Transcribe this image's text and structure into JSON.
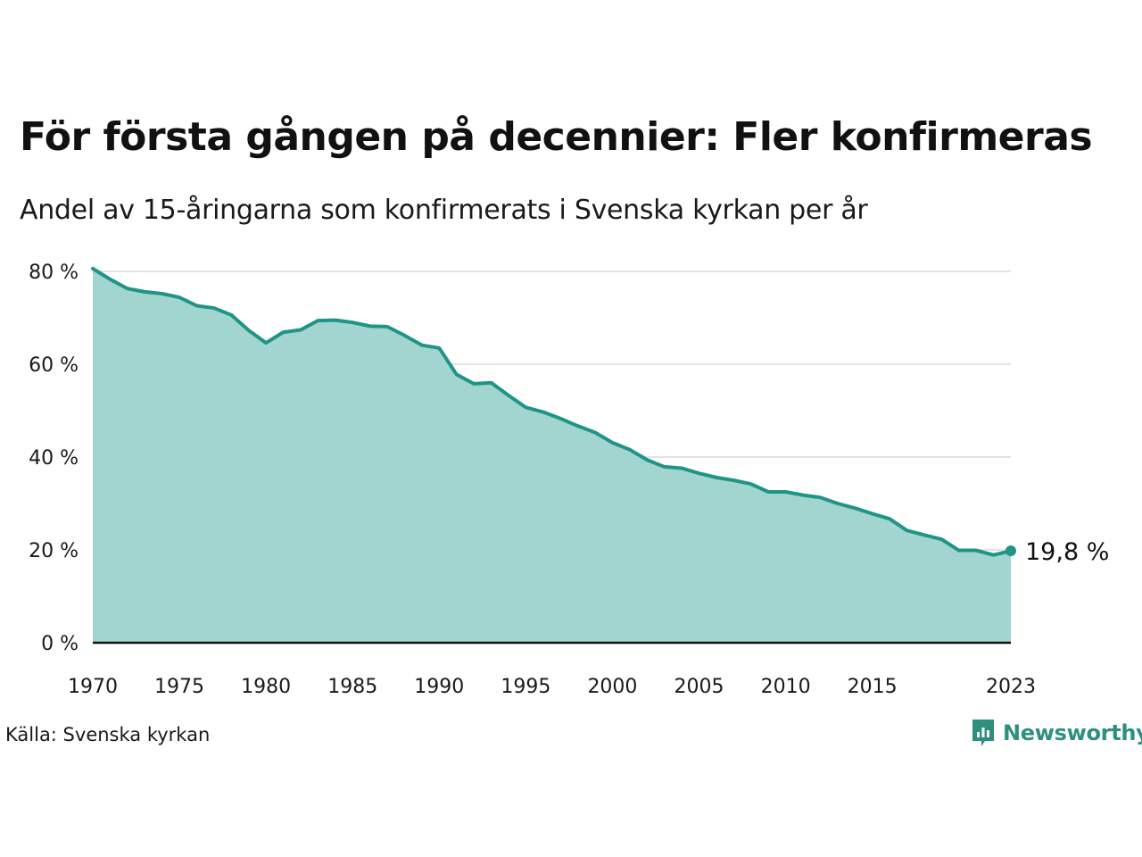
{
  "title": "För första gången på decennier: Fler konfirmeras",
  "subtitle": "Andel av 15-åringarna som konfirmerats i Svenska kyrkan per år",
  "source": "Källa: Svenska kyrkan",
  "brand": "Newsworthy",
  "colors": {
    "line": "#1f9587",
    "area": "#a3d5d0",
    "grid": "#e3e3e3",
    "axis": "#111111",
    "logo": "#2f8f7f"
  },
  "chart_data": {
    "type": "area",
    "x": [
      1970,
      1971,
      1972,
      1973,
      1974,
      1975,
      1976,
      1977,
      1978,
      1979,
      1980,
      1981,
      1982,
      1983,
      1984,
      1985,
      1986,
      1987,
      1988,
      1989,
      1990,
      1991,
      1992,
      1993,
      1994,
      1995,
      1996,
      1997,
      1998,
      1999,
      2000,
      2001,
      2002,
      2003,
      2004,
      2005,
      2006,
      2007,
      2008,
      2009,
      2010,
      2011,
      2012,
      2013,
      2014,
      2015,
      2016,
      2017,
      2018,
      2019,
      2020,
      2021,
      2022,
      2023
    ],
    "y": [
      80.6,
      78.3,
      76.3,
      75.6,
      75.2,
      74.4,
      72.6,
      72.1,
      70.6,
      67.3,
      64.6,
      66.9,
      67.4,
      69.4,
      69.5,
      69.0,
      68.2,
      68.1,
      66.2,
      64.1,
      63.5,
      57.8,
      55.8,
      56.0,
      53.3,
      50.7,
      49.7,
      48.3,
      46.7,
      45.3,
      43.1,
      41.6,
      39.4,
      37.9,
      37.6,
      36.5,
      35.6,
      35.0,
      34.2,
      32.5,
      32.5,
      31.8,
      31.3,
      30.0,
      29.0,
      27.8,
      26.7,
      24.2,
      23.2,
      22.3,
      19.9,
      19.9,
      18.9,
      19.8
    ],
    "yticks": [
      0,
      20,
      40,
      60,
      80
    ],
    "ytick_labels": [
      "0 %",
      "20 %",
      "40 %",
      "60 %",
      "80 %"
    ],
    "xticks": [
      1970,
      1975,
      1980,
      1985,
      1990,
      1995,
      2000,
      2005,
      2010,
      2015,
      2023
    ],
    "xtick_labels": [
      "1970",
      "1975",
      "1980",
      "1985",
      "1990",
      "1995",
      "2000",
      "2005",
      "2010",
      "2015",
      "2023"
    ],
    "ylim": [
      0,
      80
    ],
    "xlim": [
      1970,
      2023
    ],
    "grid": true,
    "annotations": [
      {
        "x": 2023,
        "text": "19,8  %"
      }
    ]
  }
}
